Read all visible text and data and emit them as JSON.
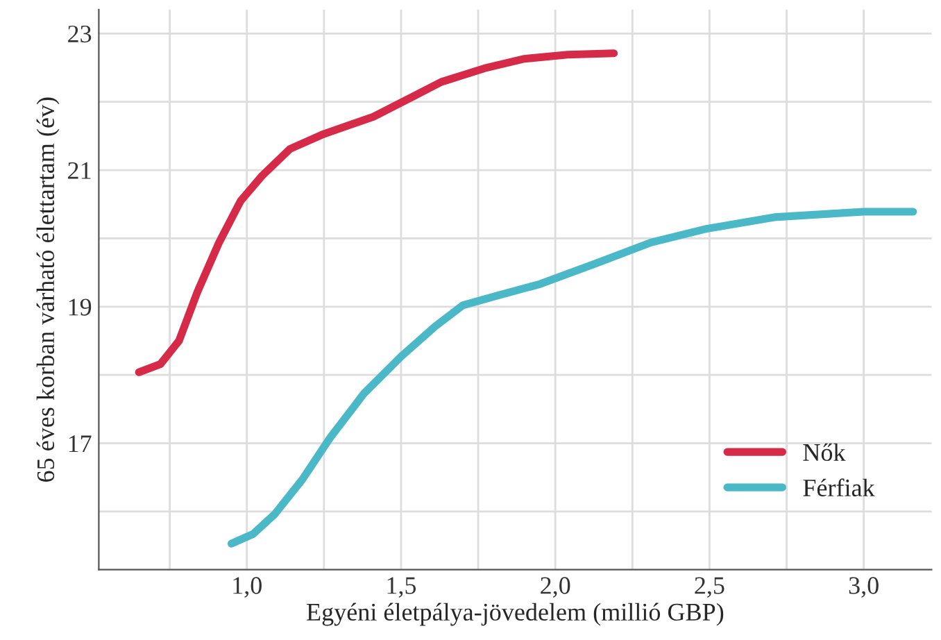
{
  "chart_data": {
    "type": "line",
    "xlabel": "Egyéni életpálya-jövedelem (millió GBP)",
    "ylabel": "65 éves korban várható élettartam (év)",
    "xlim": [
      0.52,
      3.22
    ],
    "ylim": [
      15.15,
      23.35
    ],
    "xticks": [
      {
        "value": 0.75,
        "label": null
      },
      {
        "value": 1.0,
        "label": "1,0"
      },
      {
        "value": 1.25,
        "label": null
      },
      {
        "value": 1.5,
        "label": "1,5"
      },
      {
        "value": 1.75,
        "label": null
      },
      {
        "value": 2.0,
        "label": "2,0"
      },
      {
        "value": 2.25,
        "label": null
      },
      {
        "value": 2.5,
        "label": "2,5"
      },
      {
        "value": 2.75,
        "label": null
      },
      {
        "value": 3.0,
        "label": "3,0"
      }
    ],
    "yticks": [
      {
        "value": 16,
        "label": null
      },
      17,
      {
        "value": 18,
        "label": null
      },
      19,
      {
        "value": 20,
        "label": null
      },
      21,
      {
        "value": 22,
        "label": null
      },
      23
    ],
    "grid": true,
    "legend": "bottom right",
    "marker": "none",
    "line_style": "solid",
    "series": [
      {
        "name": "Nők",
        "color": "#d62b48",
        "x": [
          0.65,
          0.72,
          0.78,
          0.84,
          0.91,
          0.98,
          1.05,
          1.14,
          1.25,
          1.41,
          1.54,
          1.63,
          1.77,
          1.9,
          2.04,
          2.19
        ],
        "values": [
          18.04,
          18.16,
          18.5,
          19.22,
          19.94,
          20.55,
          20.92,
          21.31,
          21.53,
          21.78,
          22.08,
          22.29,
          22.49,
          22.63,
          22.69,
          22.71
        ]
      },
      {
        "name": "Férfiak",
        "color": "#4bb8c8",
        "x": [
          0.95,
          1.02,
          1.09,
          1.18,
          1.27,
          1.38,
          1.5,
          1.61,
          1.7,
          1.81,
          1.95,
          2.13,
          2.31,
          2.49,
          2.71,
          3.0,
          3.16
        ],
        "values": [
          15.53,
          15.67,
          15.96,
          16.47,
          17.08,
          17.73,
          18.27,
          18.71,
          19.02,
          19.16,
          19.33,
          19.63,
          19.94,
          20.14,
          20.31,
          20.39,
          20.39
        ]
      }
    ]
  }
}
